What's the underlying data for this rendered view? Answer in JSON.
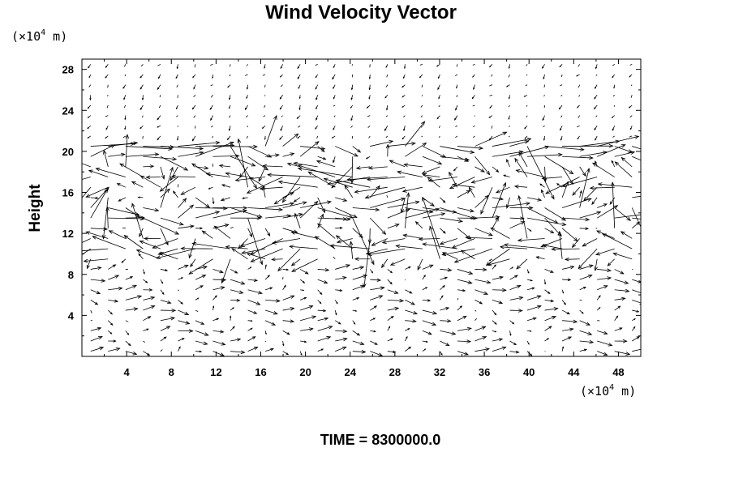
{
  "chart_data": {
    "type": "vector-field",
    "title": "Wind Velocity Vector",
    "ylabel": "Height",
    "x_unit": {
      "prefix": "(×10",
      "exponent": "4",
      "suffix": " m)"
    },
    "y_unit": {
      "prefix": "(×10",
      "exponent": "4",
      "suffix": " m)"
    },
    "xlim": [
      0,
      50
    ],
    "ylim": [
      0,
      29
    ],
    "x_ticks": [
      4,
      8,
      12,
      16,
      20,
      24,
      28,
      32,
      36,
      40,
      44,
      48
    ],
    "y_ticks": [
      4,
      8,
      12,
      16,
      20,
      24,
      28
    ],
    "x_tick_labels": [
      "4",
      "8",
      "12",
      "16",
      "20",
      "24",
      "28",
      "32",
      "36",
      "40",
      "44",
      "48"
    ],
    "y_tick_labels": [
      "4",
      "8",
      "12",
      "16",
      "20",
      "24",
      "28"
    ],
    "grid": false,
    "annotation": "TIME = 8300000.0"
  }
}
